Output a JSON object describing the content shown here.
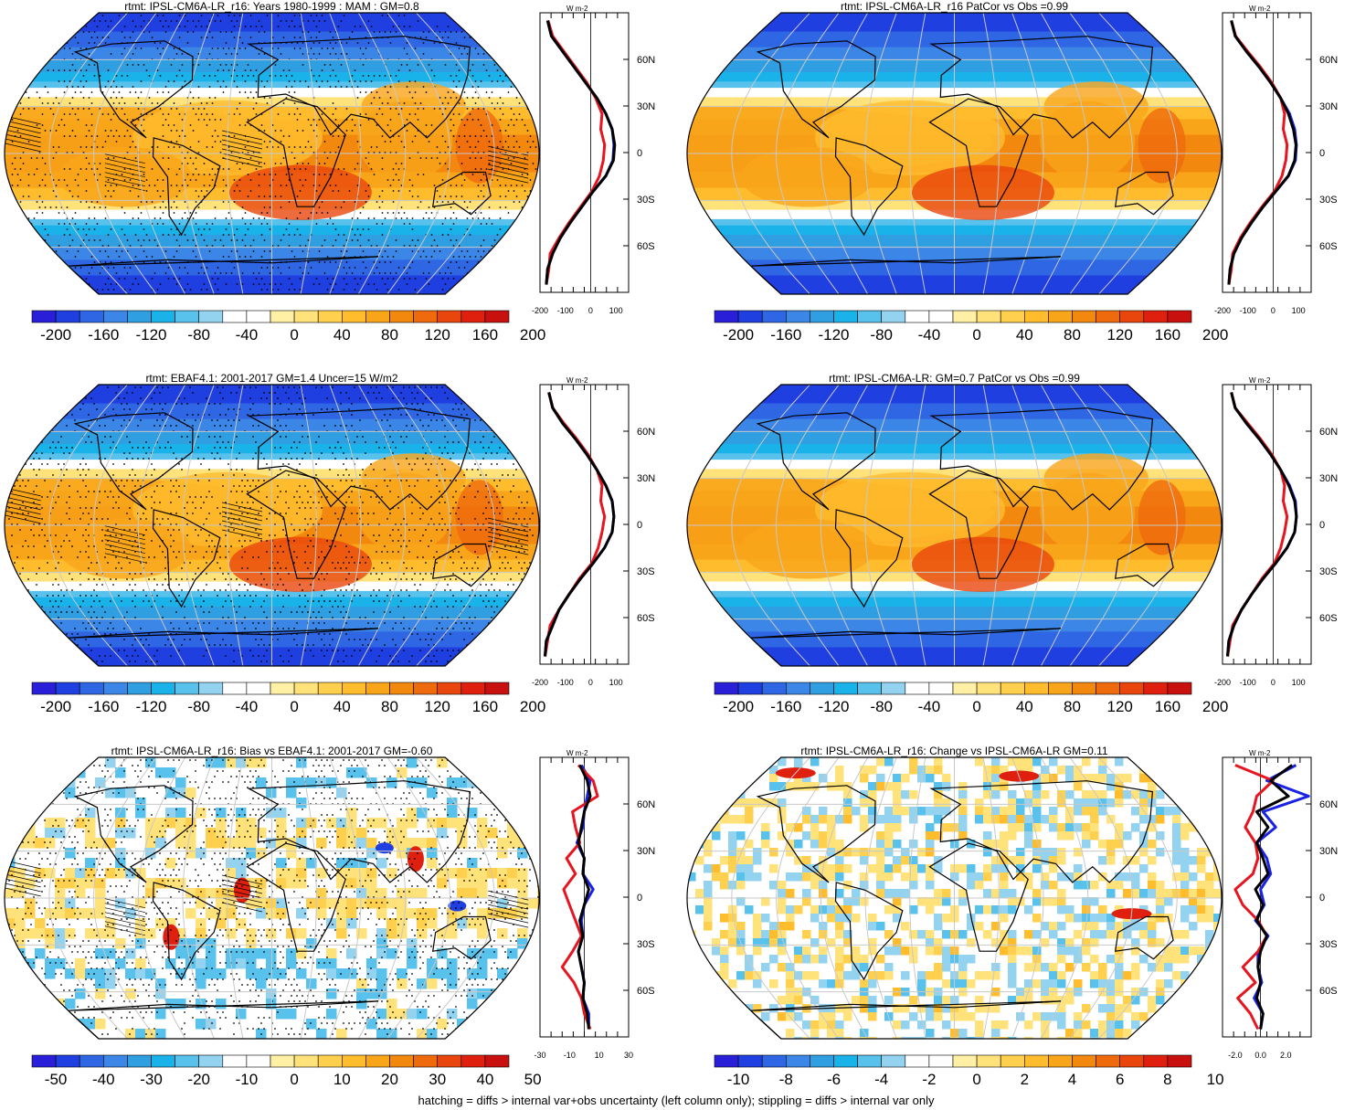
{
  "footer": "hatching = diffs > internal var+obs uncertainty (left column only); stippling = diffs > internal var only",
  "zonal_unit": "W m-2",
  "colors": {
    "scale": [
      "#2a1fd9",
      "#1f3fe0",
      "#2f66e4",
      "#3b86e6",
      "#2f9fe2",
      "#19b3ea",
      "#58c1ec",
      "#93d3ef",
      "#ffffff",
      "#ffffff",
      "#fff0a6",
      "#ffe27a",
      "#ffd04d",
      "#ffbd2e",
      "#f9a51a",
      "#f3880f",
      "#ef6a0d",
      "#e8460d",
      "#e0200f",
      "#c8100e"
    ],
    "model_line": "#000000",
    "model_member_line": "#1a22e6",
    "obs_line": "#e6151f",
    "grid": "#c8c8c8",
    "coast": "#000000"
  },
  "chart_data": [
    {
      "type": "heatmap",
      "id": "p1",
      "title": "rtmt: IPSL-CM6A-LR_r16: Years 1980-1999 : MAM : GM=0.8",
      "colorbar_labels": [
        "-200",
        "-160",
        "-120",
        "-80",
        "-40",
        "0",
        "40",
        "80",
        "120",
        "160",
        "200"
      ],
      "pattern": "climatology",
      "stippling": true,
      "hatching": true,
      "zonal": {
        "xticks": [
          "-200",
          "-100",
          "0",
          "100"
        ],
        "xlim": [
          -200,
          150
        ],
        "yticks": [
          "60N",
          "30N",
          "0",
          "30S",
          "60S"
        ],
        "lat": [
          85,
          75,
          65,
          55,
          45,
          35,
          25,
          15,
          5,
          -5,
          -15,
          -25,
          -35,
          -45,
          -55,
          -65,
          -75,
          -85
        ],
        "series": [
          {
            "values": [
              -170,
              -155,
              -110,
              -65,
              -20,
              25,
              60,
              85,
              95,
              90,
              60,
              10,
              -35,
              -80,
              -120,
              -150,
              -170,
              -175
            ]
          },
          {
            "values": [
              -170,
              -155,
              -110,
              -65,
              -20,
              25,
              60,
              85,
              92,
              88,
              60,
              10,
              -35,
              -80,
              -120,
              -150,
              -170,
              -175
            ]
          },
          {
            "values": [
              -168,
              -150,
              -105,
              -60,
              -15,
              20,
              45,
              40,
              55,
              50,
              35,
              5,
              -40,
              -85,
              -125,
              -160,
              -165,
              -175
            ]
          }
        ]
      }
    },
    {
      "type": "heatmap",
      "id": "p2",
      "title": "rtmt: IPSL-CM6A-LR_r16 PatCor vs Obs =0.99",
      "colorbar_labels": [
        "-200",
        "-160",
        "-120",
        "-80",
        "-40",
        "0",
        "40",
        "80",
        "120",
        "160",
        "200"
      ],
      "pattern": "climatology",
      "stippling": false,
      "hatching": false,
      "zonal": {
        "xticks": [
          "-200",
          "-100",
          "0",
          "100"
        ],
        "xlim": [
          -200,
          150
        ],
        "yticks": [
          "60N",
          "30N",
          "0",
          "30S",
          "60S"
        ],
        "lat": [
          85,
          75,
          65,
          55,
          45,
          35,
          25,
          15,
          5,
          -5,
          -15,
          -25,
          -35,
          -45,
          -55,
          -65,
          -75,
          -85
        ],
        "series": [
          {
            "values": [
              -165,
              -150,
              -105,
              -55,
              -10,
              30,
              60,
              80,
              90,
              85,
              60,
              10,
              -40,
              -85,
              -125,
              -155,
              -170,
              -175
            ]
          },
          {
            "values": [
              -165,
              -150,
              -105,
              -55,
              -10,
              30,
              65,
              85,
              92,
              88,
              60,
              10,
              -40,
              -85,
              -125,
              -155,
              -170,
              -175
            ]
          },
          {
            "values": [
              -165,
              -148,
              -100,
              -50,
              -5,
              30,
              45,
              40,
              55,
              50,
              35,
              5,
              -45,
              -90,
              -130,
              -160,
              -165,
              -175
            ]
          }
        ]
      }
    },
    {
      "type": "heatmap",
      "id": "p3",
      "title": "rtmt: EBAF4.1: 2001-2017 GM=1.4 Uncer=15 W/m2",
      "colorbar_labels": [
        "-200",
        "-160",
        "-120",
        "-80",
        "-40",
        "0",
        "40",
        "80",
        "120",
        "160",
        "200"
      ],
      "pattern": "climatology",
      "stippling": true,
      "hatching": true,
      "zonal": {
        "xticks": [
          "-200",
          "-100",
          "0",
          "100"
        ],
        "xlim": [
          -200,
          150
        ],
        "yticks": [
          "60N",
          "30N",
          "0",
          "30S",
          "60S"
        ],
        "lat": [
          85,
          75,
          65,
          55,
          45,
          35,
          25,
          15,
          5,
          -5,
          -15,
          -25,
          -35,
          -45,
          -55,
          -65,
          -75,
          -85
        ],
        "series": [
          {
            "values": [
              -165,
              -150,
              -110,
              -60,
              -15,
              25,
              60,
              85,
              92,
              85,
              55,
              10,
              -40,
              -85,
              -125,
              -150,
              -175,
              -180
            ]
          },
          {
            "values": [
              -165,
              -150,
              -110,
              -60,
              -15,
              25,
              60,
              85,
              92,
              85,
              55,
              10,
              -40,
              -85,
              -125,
              -150,
              -175,
              -180
            ]
          },
          {
            "values": [
              -165,
              -150,
              -105,
              -55,
              -10,
              25,
              45,
              40,
              55,
              45,
              30,
              5,
              -45,
              -85,
              -125,
              -160,
              -170,
              -180
            ]
          }
        ]
      }
    },
    {
      "type": "heatmap",
      "id": "p4",
      "title": "rtmt: IPSL-CM6A-LR: GM=0.7 PatCor vs Obs =0.99",
      "colorbar_labels": [
        "-200",
        "-160",
        "-120",
        "-80",
        "-40",
        "0",
        "40",
        "80",
        "120",
        "160",
        "200"
      ],
      "pattern": "climatology",
      "stippling": false,
      "hatching": false,
      "zonal": {
        "xticks": [
          "-200",
          "-100",
          "0",
          "100"
        ],
        "xlim": [
          -200,
          150
        ],
        "yticks": [
          "60N",
          "30N",
          "0",
          "30S",
          "60S"
        ],
        "lat": [
          85,
          75,
          65,
          55,
          45,
          35,
          25,
          15,
          5,
          -5,
          -15,
          -25,
          -35,
          -45,
          -55,
          -65,
          -75,
          -85
        ],
        "series": [
          {
            "values": [
              -165,
              -150,
              -105,
              -55,
              -10,
              30,
              62,
              85,
              92,
              85,
              55,
              10,
              -40,
              -85,
              -125,
              -155,
              -175,
              -180
            ]
          },
          {
            "values": [
              -165,
              -150,
              -105,
              -55,
              -10,
              30,
              65,
              88,
              92,
              85,
              55,
              10,
              -40,
              -85,
              -125,
              -155,
              -175,
              -180
            ]
          },
          {
            "values": [
              -165,
              -150,
              -100,
              -50,
              -5,
              30,
              45,
              40,
              55,
              45,
              30,
              5,
              -45,
              -85,
              -125,
              -160,
              -170,
              -180
            ]
          }
        ]
      }
    },
    {
      "type": "heatmap",
      "id": "p5",
      "title": "rtmt: IPSL-CM6A-LR_r16: Bias vs EBAF4.1: 2001-2017 GM=-0.60",
      "colorbar_labels": [
        "-50",
        "-40",
        "-30",
        "-20",
        "-10",
        "0",
        "10",
        "20",
        "30",
        "40",
        "50"
      ],
      "pattern": "bias",
      "stippling": true,
      "hatching": true,
      "zonal": {
        "xticks": [
          "-30",
          "-10",
          "10",
          "30"
        ],
        "xlim": [
          -30,
          30
        ],
        "yticks": [
          "60N",
          "30N",
          "0",
          "30S",
          "60S"
        ],
        "lat": [
          85,
          75,
          65,
          55,
          45,
          35,
          25,
          15,
          5,
          -5,
          -15,
          -25,
          -35,
          -45,
          -55,
          -65,
          -75,
          -85
        ],
        "series": [
          {
            "values": [
              -3,
              2,
              4,
              0,
              -2,
              -4,
              0,
              -1,
              3,
              0,
              -3,
              -1,
              -4,
              -2,
              0,
              -1,
              2,
              3
            ]
          },
          {
            "values": [
              -2,
              4,
              2,
              0,
              -1,
              -5,
              0,
              -1,
              6,
              0,
              -2,
              -1,
              -4,
              -2,
              0,
              -1,
              3,
              3
            ]
          },
          {
            "values": [
              -4,
              6,
              9,
              -8,
              -6,
              -3,
              -12,
              -6,
              -14,
              -10,
              -6,
              -2,
              -8,
              -15,
              -7,
              -2,
              0,
              4
            ]
          }
        ]
      }
    },
    {
      "type": "heatmap",
      "id": "p6",
      "title": "rtmt: IPSL-CM6A-LR_r16: Change vs IPSL-CM6A-LR GM=0.11",
      "colorbar_labels": [
        "-10",
        "-8",
        "-6",
        "-4",
        "-2",
        "0",
        "2",
        "4",
        "6",
        "8",
        "10"
      ],
      "pattern": "change",
      "stippling": false,
      "hatching": false,
      "zonal": {
        "xticks": [
          "-2.0",
          "0.0",
          "2.0"
        ],
        "xlim": [
          -3,
          4
        ],
        "yticks": [
          "60N",
          "30N",
          "0",
          "30S",
          "60S"
        ],
        "lat": [
          85,
          75,
          65,
          55,
          45,
          35,
          25,
          15,
          5,
          -5,
          -15,
          -25,
          -35,
          -45,
          -55,
          -65,
          -75,
          -85
        ],
        "series": [
          {
            "values": [
              2.5,
              0.8,
              2.2,
              -0.3,
              0.6,
              -0.3,
              0.2,
              0.6,
              -0.4,
              0.2,
              -0.3,
              0.5,
              0.0,
              -0.2,
              0.0,
              -0.3,
              0.2,
              0.0
            ]
          },
          {
            "values": [
              2.8,
              0.5,
              3.8,
              0.2,
              1.2,
              -0.3,
              0.5,
              0.8,
              0.0,
              0.3,
              -0.4,
              0.6,
              -0.2,
              -0.2,
              0.1,
              -0.5,
              0.2,
              0.0
            ]
          },
          {
            "values": [
              -2.0,
              1.0,
              -0.3,
              -0.6,
              -1.2,
              -0.4,
              -0.2,
              -0.6,
              -2.0,
              -1.4,
              -0.2,
              0.5,
              -0.2,
              -1.4,
              -0.4,
              -1.8,
              -0.8,
              -0.2
            ]
          }
        ]
      }
    }
  ]
}
